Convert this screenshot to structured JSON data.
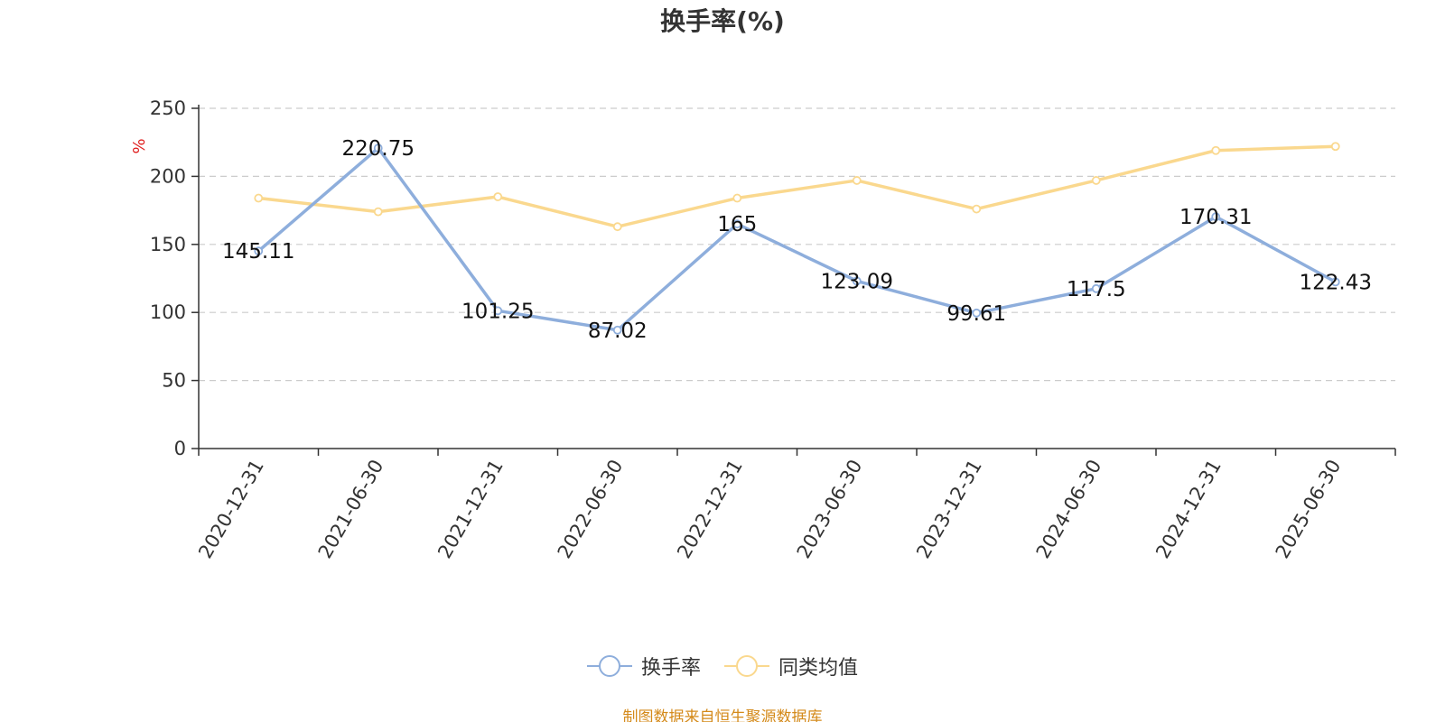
{
  "page": {
    "source": "制图数据来自恒生聚源数据库"
  },
  "colors": {
    "series_primary": "#8eaedc",
    "series_secondary": "#fad88e",
    "axis": "#333333",
    "grid": "#cccccc",
    "unit": "#e02020",
    "source": "#d48a1a"
  },
  "chart_data": {
    "type": "line",
    "title": "换手率(%)",
    "ylabel": "%",
    "xlabel": "",
    "ylim": [
      0,
      250
    ],
    "yticks": [
      0,
      50,
      100,
      150,
      200,
      250
    ],
    "grid": true,
    "legend_position": "bottom-center",
    "categories": [
      "2020-12-31",
      "2021-06-30",
      "2021-12-31",
      "2022-06-30",
      "2022-12-31",
      "2023-06-30",
      "2023-12-31",
      "2024-06-30",
      "2024-12-31",
      "2025-06-30"
    ],
    "series": [
      {
        "name": "换手率",
        "color": "#8eaedc",
        "values": [
          145.11,
          220.75,
          101.25,
          87.02,
          165,
          123.09,
          99.61,
          117.5,
          170.31,
          122.43
        ],
        "labels": [
          "145.11",
          "220.75",
          "101.25",
          "87.02",
          "165",
          "123.09",
          "99.61",
          "117.5",
          "170.31",
          "122.43"
        ]
      },
      {
        "name": "同类均值",
        "color": "#fad88e",
        "values": [
          184,
          174,
          185,
          163,
          184,
          197,
          176,
          197,
          219,
          222
        ]
      }
    ]
  }
}
